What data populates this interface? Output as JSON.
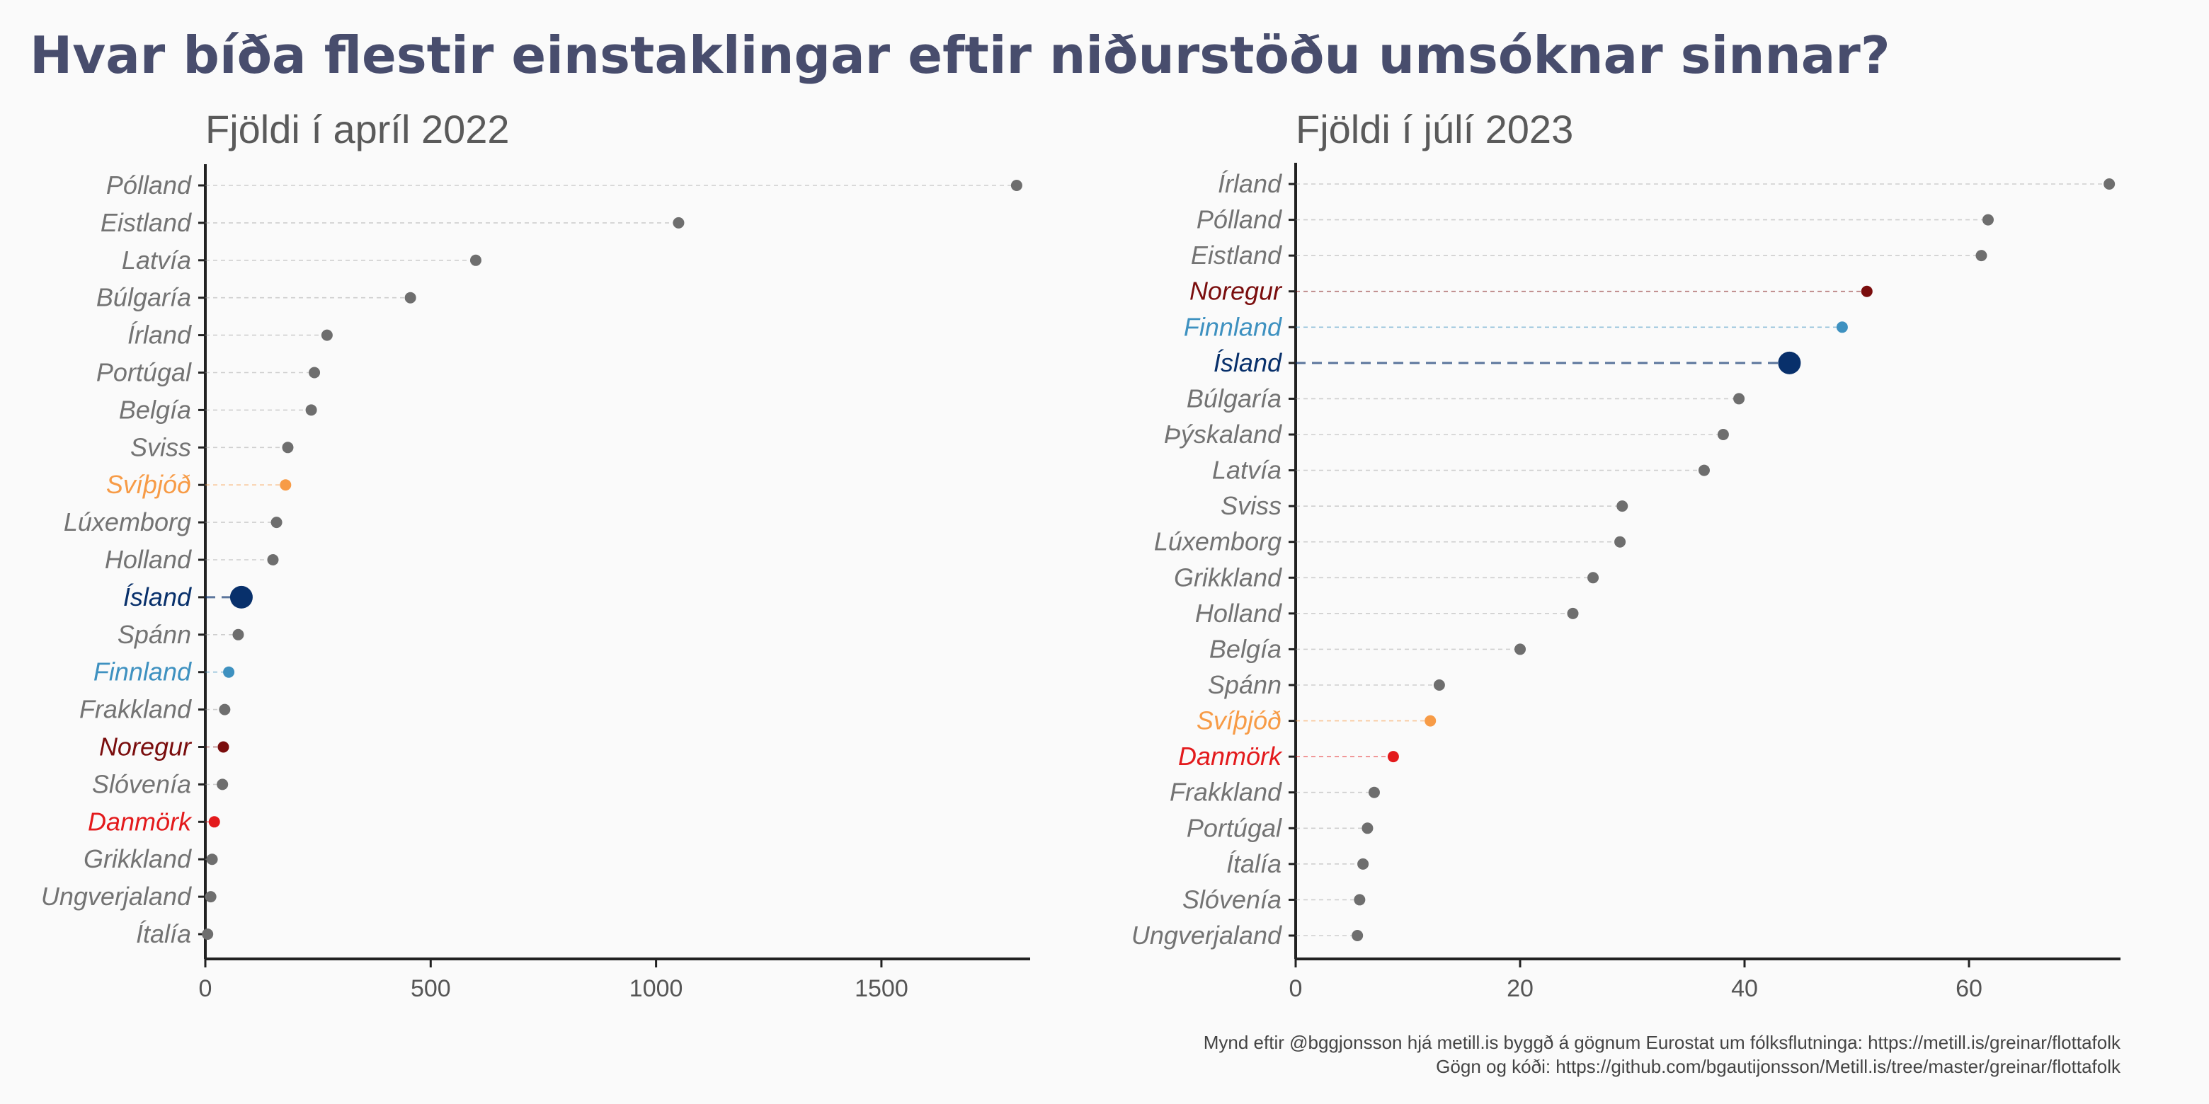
{
  "title": "Hvar bíða flestir einstaklingar eftir niðurstöðu umsóknar sinnar?",
  "caption": {
    "line1": "Mynd eftir @bggjonsson hjá metill.is byggð á gögnum Eurostat um fólksflutninga: https://metill.is/greinar/flottafolk",
    "line2": "Gögn og kóði: https://github.com/bgautijonsson/Metill.is/tree/master/greinar/flottafolk"
  },
  "colors": {
    "default_point": "#6e6e6e",
    "default_label": "#737373",
    "Ísland": "#08306b",
    "Noregur": "#7a0d0d",
    "Finnland": "#3e91c0",
    "Svíþjóð": "#f79b46",
    "Danmörk": "#e31a1c"
  },
  "chart_data": [
    {
      "type": "scatter",
      "title": "Fjöldi í apríl 2022",
      "xlabel": "",
      "ylabel": "",
      "xlim": [
        0,
        1830
      ],
      "xticks": [
        0,
        500,
        1000,
        1500
      ],
      "categories": [
        "Pólland",
        "Eistland",
        "Latvía",
        "Búlgaría",
        "Írland",
        "Portúgal",
        "Belgía",
        "Sviss",
        "Svíþjóð",
        "Lúxemborg",
        "Holland",
        "Ísland",
        "Spánn",
        "Finnland",
        "Frakkland",
        "Noregur",
        "Slóvenía",
        "Danmörk",
        "Grikkland",
        "Ungverjaland",
        "Ítalía"
      ],
      "values": [
        1800,
        1050,
        600,
        455,
        270,
        242,
        235,
        183,
        178,
        158,
        150,
        80,
        73,
        52,
        43,
        40,
        38,
        20,
        15,
        12,
        5
      ]
    },
    {
      "type": "scatter",
      "title": "Fjöldi í júlí 2023",
      "xlabel": "",
      "ylabel": "",
      "xlim": [
        0,
        73.5
      ],
      "xticks": [
        0,
        20,
        40,
        60
      ],
      "categories": [
        "Írland",
        "Pólland",
        "Eistland",
        "Noregur",
        "Finnland",
        "Ísland",
        "Búlgaría",
        "Þýskaland",
        "Latvía",
        "Sviss",
        "Lúxemborg",
        "Grikkland",
        "Holland",
        "Belgía",
        "Spánn",
        "Svíþjóð",
        "Danmörk",
        "Frakkland",
        "Portúgal",
        "Ítalía",
        "Slóvenía",
        "Ungverjaland"
      ],
      "values": [
        72.5,
        61.7,
        61.1,
        50.9,
        48.7,
        44.0,
        39.5,
        38.1,
        36.4,
        29.1,
        28.9,
        26.5,
        24.7,
        20.0,
        12.8,
        12.0,
        8.7,
        7.0,
        6.4,
        6.0,
        5.7,
        5.5
      ]
    }
  ]
}
